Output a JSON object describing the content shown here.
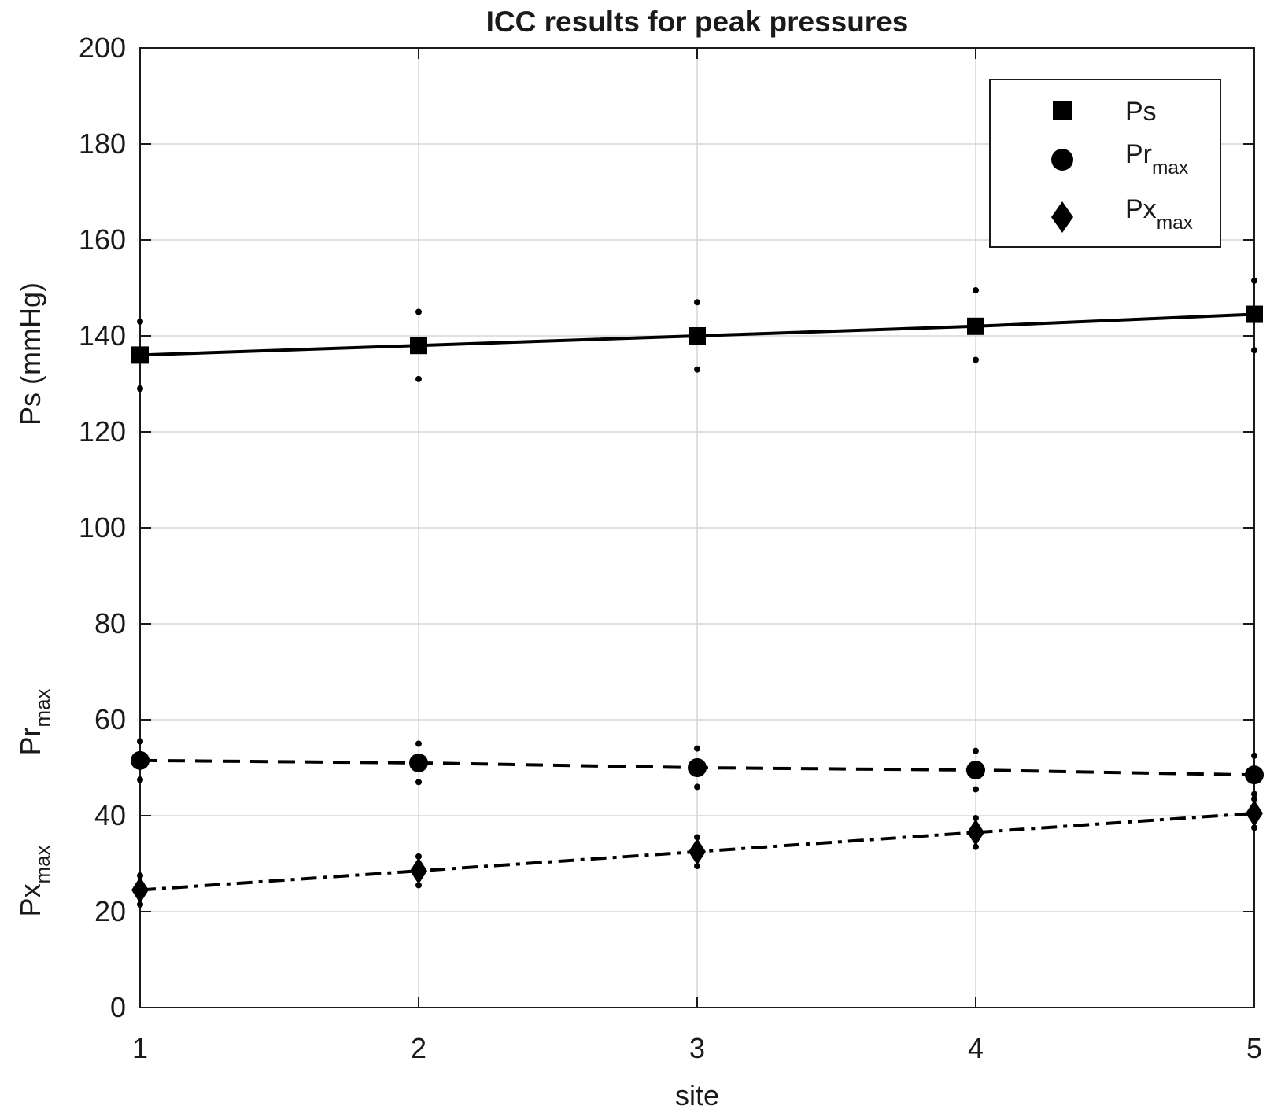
{
  "chart_data": {
    "type": "line",
    "title": "ICC results for peak pressures",
    "xlabel": "site",
    "ylabel": {
      "ps": "Ps  (mmHg)",
      "pr_base": "Pr",
      "pr_sub": "max",
      "px_base": "Px",
      "px_sub": "max"
    },
    "x": [
      1,
      2,
      3,
      4,
      5
    ],
    "xlim": [
      1,
      5
    ],
    "ylim": [
      0,
      200
    ],
    "xticks": [
      "1",
      "2",
      "3",
      "4",
      "5"
    ],
    "yticks": [
      "0",
      "20",
      "40",
      "60",
      "80",
      "100",
      "120",
      "140",
      "160",
      "180",
      "200"
    ],
    "grid": true,
    "legend_position": "top-right",
    "series": [
      {
        "name": "Ps",
        "marker": "square",
        "line": "solid",
        "values": [
          136,
          138,
          140,
          142,
          144.5
        ],
        "upper": [
          143,
          145,
          147,
          149.5,
          151.5
        ],
        "lower": [
          129,
          131,
          133,
          135,
          137
        ]
      },
      {
        "name": "Pr",
        "name_sub": "max",
        "marker": "circle",
        "line": "dashed",
        "values": [
          51.5,
          51,
          50,
          49.5,
          48.5
        ],
        "upper": [
          55.5,
          55,
          54,
          53.5,
          52.5
        ],
        "lower": [
          47.5,
          47,
          46,
          45.5,
          44.5
        ]
      },
      {
        "name": "Px",
        "name_sub": "max",
        "marker": "diamond",
        "line": "dashdot",
        "values": [
          24.5,
          28.5,
          32.5,
          36.5,
          40.5
        ],
        "upper": [
          27.5,
          31.5,
          35.5,
          39.5,
          43.5
        ],
        "lower": [
          21.5,
          25.5,
          29.5,
          33.5,
          37.5
        ]
      }
    ]
  }
}
